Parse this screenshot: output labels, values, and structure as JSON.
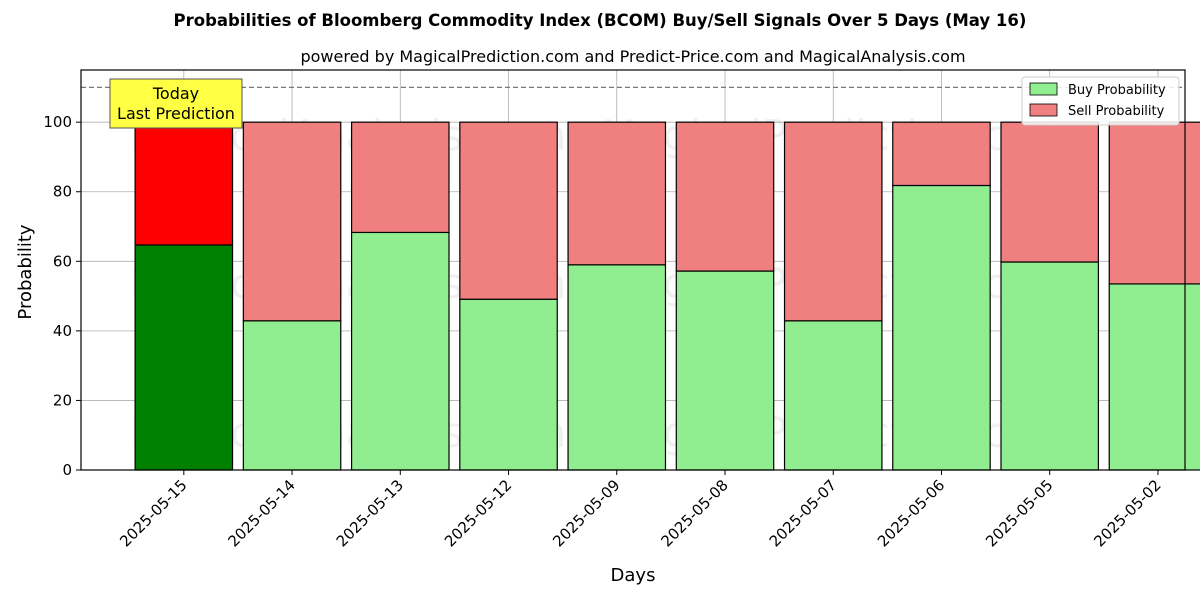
{
  "chart_data": {
    "type": "bar",
    "stacked": true,
    "title": "Probabilities of Bloomberg Commodity Index (BCOM) Buy/Sell Signals Over 5 Days (May 16)",
    "subtitle": "powered by MagicalPrediction.com and Predict-Price.com and MagicalAnalysis.com",
    "xlabel": "Days",
    "ylabel": "Probability",
    "ylim": [
      0,
      115
    ],
    "yticks": [
      0,
      20,
      40,
      60,
      80,
      100
    ],
    "grid": true,
    "legend_position": "top-right",
    "reference_line": 110,
    "categories": [
      "2025-05-15",
      "2025-05-14",
      "2025-05-13",
      "2025-05-12",
      "2025-05-09",
      "2025-05-08",
      "2025-05-07",
      "2025-05-06",
      "2025-05-05",
      "2025-05-02"
    ],
    "series": [
      {
        "name": "Buy Probability",
        "color": "#90ee90",
        "highlight_color": "#008000",
        "values": [
          64.7,
          42.9,
          68.3,
          49.1,
          59.0,
          57.2,
          42.9,
          81.8,
          59.8,
          53.5
        ]
      },
      {
        "name": "Sell Probability",
        "color": "#f08080",
        "highlight_color": "#ff0000",
        "values": [
          35.3,
          57.1,
          31.7,
          50.9,
          41.0,
          42.8,
          57.1,
          18.2,
          40.2,
          46.5
        ]
      }
    ],
    "annotation": {
      "lines": [
        "Today",
        "Last Prediction"
      ],
      "color": "#ffff44"
    },
    "watermarks": [
      "MagicalAnalysis.com",
      "MagicalPrediction.com"
    ]
  }
}
